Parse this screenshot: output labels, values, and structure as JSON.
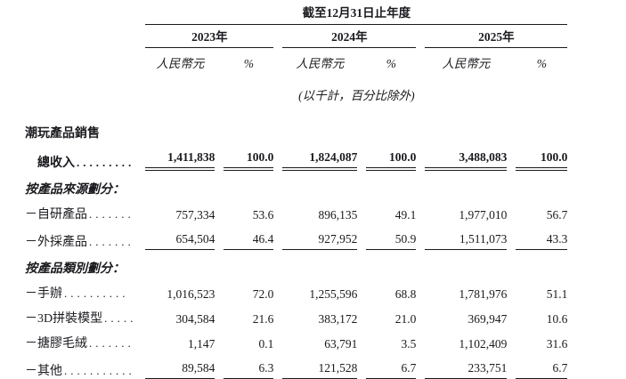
{
  "table": {
    "period_header": "截至12月31日止年度",
    "unit_note": "(以千計，百分比除外)",
    "year_groups": [
      {
        "year": "2023年",
        "currency_label": "人民幣元",
        "pct_label": "%"
      },
      {
        "year": "2024年",
        "currency_label": "人民幣元",
        "pct_label": "%"
      },
      {
        "year": "2025年",
        "currency_label": "人民幣元",
        "pct_label": "%"
      }
    ],
    "rows": [
      {
        "type": "section",
        "label": "潮玩產品銷售",
        "italic": false
      },
      {
        "type": "data",
        "label": "總收入",
        "dots": ".........",
        "indent": true,
        "bold": true,
        "underline": "double",
        "values": [
          "1,411,838",
          "100.0",
          "1,824,087",
          "100.0",
          "3,488,083",
          "100.0"
        ]
      },
      {
        "type": "section",
        "label": "按產品來源劃分：",
        "italic": true
      },
      {
        "type": "data",
        "label": "－自研產品",
        "dots": ".......",
        "indent": false,
        "bold": false,
        "underline": "none",
        "values": [
          "757,334",
          "53.6",
          "896,135",
          "49.1",
          "1,977,010",
          "56.7"
        ]
      },
      {
        "type": "data",
        "label": "－外採產品",
        "dots": ".......",
        "indent": false,
        "bold": false,
        "underline": "single",
        "values": [
          "654,504",
          "46.4",
          "927,952",
          "50.9",
          "1,511,073",
          "43.3"
        ]
      },
      {
        "type": "section",
        "label": "按產品類別劃分：",
        "italic": true
      },
      {
        "type": "data",
        "label": "－手辦",
        "dots": "..........",
        "indent": false,
        "bold": false,
        "underline": "none",
        "values": [
          "1,016,523",
          "72.0",
          "1,255,596",
          "68.8",
          "1,781,976",
          "51.1"
        ]
      },
      {
        "type": "data",
        "label": "－3D拼裝模型",
        "dots": ".....",
        "indent": false,
        "bold": false,
        "underline": "none",
        "values": [
          "304,584",
          "21.6",
          "383,172",
          "21.0",
          "369,947",
          "10.6"
        ]
      },
      {
        "type": "data",
        "label": "－搪膠毛絨",
        "dots": ".......",
        "indent": false,
        "bold": false,
        "underline": "none",
        "values": [
          "1,147",
          "0.1",
          "63,791",
          "3.5",
          "1,102,409",
          "31.6"
        ]
      },
      {
        "type": "data",
        "label": "－其他",
        "dots": "...........",
        "indent": false,
        "bold": false,
        "underline": "single",
        "values": [
          "89,584",
          "6.3",
          "121,528",
          "6.7",
          "233,751",
          "6.7"
        ]
      }
    ]
  }
}
